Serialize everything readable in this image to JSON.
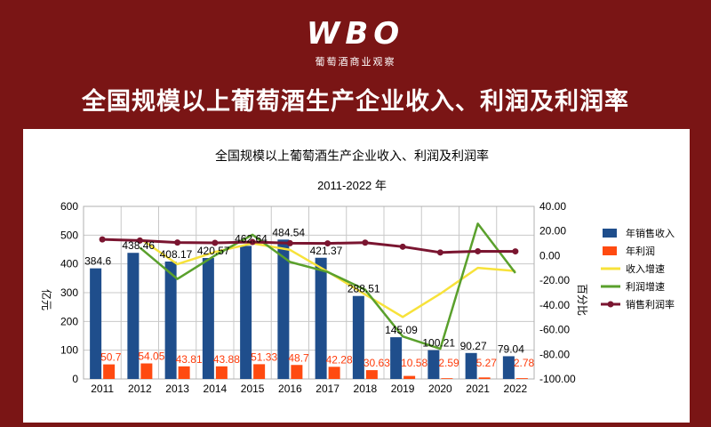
{
  "header": {
    "logo_text": "WBO",
    "logo_subtitle": "葡萄酒商业观察",
    "title": "全国规模以上葡萄酒生产企业收入、利润及利润率"
  },
  "chart_data": {
    "type": "bar",
    "title": "全国规模以上葡萄酒生产企业收入、利润及利润率",
    "subtitle": "2011-2022 年",
    "ylabel": "亿元",
    "y2label": "百分比",
    "ylim": [
      0,
      600
    ],
    "yticks": [
      0,
      100,
      200,
      300,
      400,
      500,
      600
    ],
    "y2lim": [
      -100,
      40
    ],
    "y2ticks": [
      -100,
      -80,
      -60,
      -40,
      -20,
      0,
      20,
      40
    ],
    "y2tick_labels": [
      "-100.00",
      "-80.00",
      "-60.00",
      "-40.00",
      "-20.00",
      "0.00",
      "20.00",
      "40.00"
    ],
    "grid": true,
    "legend_position": "right",
    "categories": [
      "2011",
      "2012",
      "2013",
      "2014",
      "2015",
      "2016",
      "2017",
      "2018",
      "2019",
      "2020",
      "2021",
      "2022"
    ],
    "series": [
      {
        "name": "年销售收入",
        "type": "bar",
        "axis": "left",
        "color": "#1f4e8c",
        "values": [
          384.6,
          438.46,
          408.17,
          420.57,
          462.64,
          484.54,
          421.37,
          288.51,
          145.09,
          100.21,
          90.27,
          79.04
        ],
        "labels": [
          "384.6",
          "438.46",
          "408.17",
          "420.57",
          "462.64",
          "484.54",
          "421.37",
          "288.51",
          "145.09",
          "100.21",
          "90.27",
          "79.04"
        ]
      },
      {
        "name": "年利润",
        "type": "bar",
        "axis": "left",
        "color": "#ff4a10",
        "values": [
          50.7,
          54.05,
          43.81,
          43.88,
          51.33,
          48.7,
          42.28,
          30.63,
          10.58,
          2.59,
          5.27,
          2.78
        ],
        "labels": [
          "50.7",
          "54.05",
          "43.81",
          "43.88",
          "51.33",
          "48.7",
          "42.28",
          "30.63",
          "10.58",
          "2.59",
          "5.27",
          "2.78"
        ]
      },
      {
        "name": "收入增速",
        "type": "line",
        "axis": "right",
        "color": "#f7e23a",
        "values": [
          null,
          14.0,
          -6.9,
          3.0,
          10.0,
          4.7,
          -13.0,
          -31.5,
          -49.7,
          -30.9,
          -9.9,
          -12.4
        ]
      },
      {
        "name": "利润增速",
        "type": "line",
        "axis": "right",
        "color": "#5aa02c",
        "values": [
          null,
          6.6,
          -18.9,
          0.2,
          17.0,
          -5.1,
          -13.2,
          -27.6,
          -65.5,
          -75.5,
          26.0,
          -14.0
        ]
      },
      {
        "name": "销售利润率",
        "type": "line",
        "axis": "right",
        "color": "#7a1530",
        "marker": true,
        "values": [
          13.2,
          12.3,
          10.7,
          10.4,
          11.1,
          10.1,
          10.0,
          10.6,
          7.3,
          2.6,
          3.6,
          3.5
        ]
      }
    ]
  }
}
